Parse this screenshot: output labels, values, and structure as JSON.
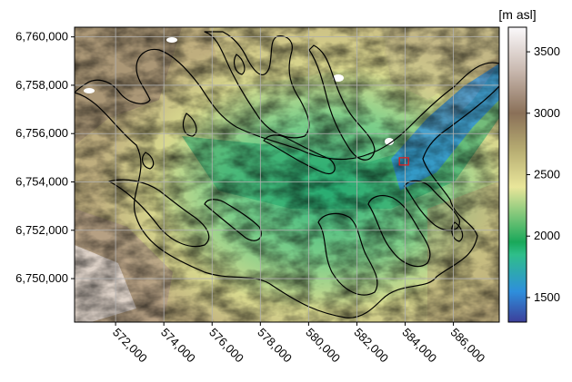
{
  "chart_data": {
    "type": "heatmap",
    "title": "",
    "colorbar": {
      "unit_label": "[m asl]",
      "range": [
        1300,
        3700
      ],
      "ticks": [
        1500,
        2000,
        2500,
        3000,
        3500
      ],
      "tick_labels": [
        "1500",
        "2000",
        "2500",
        "3000",
        "3500"
      ],
      "colors": [
        "#3c3f9a",
        "#2e8fdc",
        "#2fbe8a",
        "#19a85a",
        "#e9e69a",
        "#b7ad72",
        "#8a7058",
        "#c9b9b0",
        "#fbf9fb"
      ],
      "color_stops": [
        1300,
        1550,
        1850,
        1950,
        2400,
        2700,
        3000,
        3350,
        3700
      ]
    },
    "x_axis": {
      "range": [
        570300,
        587900
      ],
      "ticks": [
        572000,
        574000,
        576000,
        578000,
        580000,
        582000,
        584000,
        586000
      ],
      "tick_labels": [
        "572,000",
        "574,000",
        "576,000",
        "578,000",
        "580,000",
        "582,000",
        "584,000",
        "586,000"
      ],
      "tick_label_rotation_deg": 45
    },
    "y_axis": {
      "range": [
        6748200,
        6760400
      ],
      "ticks": [
        6750000,
        6752000,
        6754000,
        6756000,
        6758000,
        6760000
      ],
      "tick_labels": [
        "6,750,000",
        "6,752,000",
        "6,754,000",
        "6,756,000",
        "6,758,000",
        "6,760,000"
      ]
    },
    "grid": true,
    "marker": {
      "shape": "square",
      "color": "#e02020",
      "x": 583950,
      "y": 6754850
    },
    "glacier_outlines": "black"
  }
}
